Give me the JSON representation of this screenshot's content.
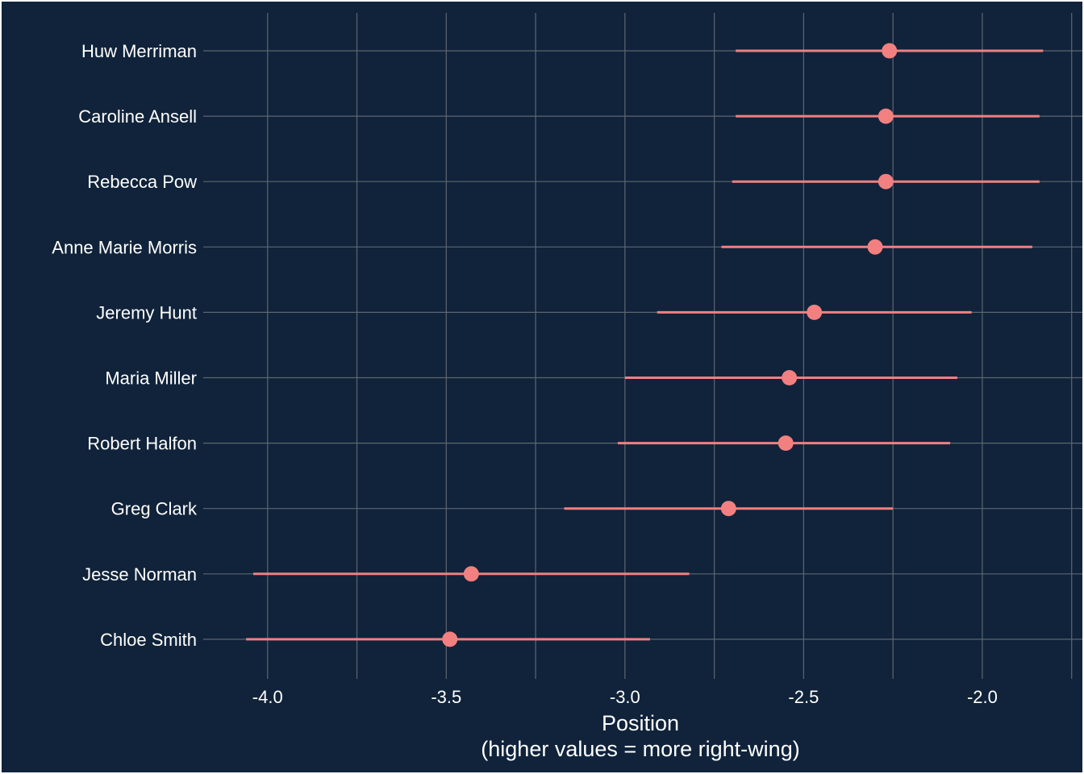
{
  "chart_data": {
    "type": "scatter",
    "orientation": "horizontal-pointrange",
    "xlabel_line1": "Position",
    "xlabel_line2": "(higher values = more right-wing)",
    "ylabel": "",
    "xlim": [
      -4.18,
      -1.72
    ],
    "xticks": [
      -4.0,
      -3.5,
      -3.0,
      -2.5,
      -2.0
    ],
    "xtick_labels": [
      "-4.0",
      "-3.5",
      "-3.0",
      "-2.5",
      "-2.0"
    ],
    "minor_xticks": [
      -3.75,
      -3.25,
      -2.75,
      -2.25,
      -1.75
    ],
    "grid": true,
    "colors": {
      "background": "#10233a",
      "point": "#f28080",
      "grid": "#5d6670",
      "text": "#ffffff"
    },
    "points": [
      {
        "name": "Huw Merriman",
        "estimate": -2.26,
        "lower": -2.69,
        "upper": -1.83
      },
      {
        "name": "Caroline Ansell",
        "estimate": -2.27,
        "lower": -2.69,
        "upper": -1.84
      },
      {
        "name": "Rebecca Pow",
        "estimate": -2.27,
        "lower": -2.7,
        "upper": -1.84
      },
      {
        "name": "Anne Marie Morris",
        "estimate": -2.3,
        "lower": -2.73,
        "upper": -1.86
      },
      {
        "name": "Jeremy Hunt",
        "estimate": -2.47,
        "lower": -2.91,
        "upper": -2.03
      },
      {
        "name": "Maria Miller",
        "estimate": -2.54,
        "lower": -3.0,
        "upper": -2.07
      },
      {
        "name": "Robert Halfon",
        "estimate": -2.55,
        "lower": -3.02,
        "upper": -2.09
      },
      {
        "name": "Greg Clark",
        "estimate": -2.71,
        "lower": -3.17,
        "upper": -2.25
      },
      {
        "name": "Jesse Norman",
        "estimate": -3.43,
        "lower": -4.04,
        "upper": -2.82
      },
      {
        "name": "Chloe Smith",
        "estimate": -3.49,
        "lower": -4.06,
        "upper": -2.93
      }
    ]
  }
}
